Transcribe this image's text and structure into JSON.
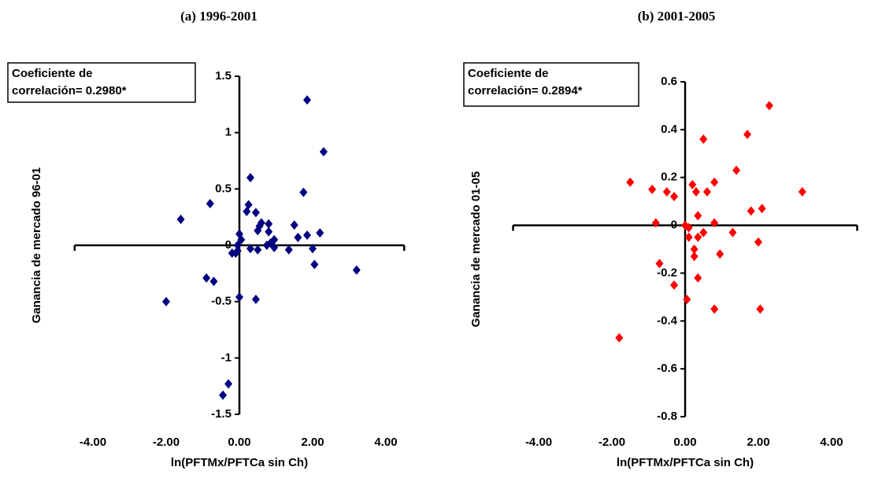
{
  "chart_data": [
    {
      "type": "scatter",
      "title": "(a) 1996-2001",
      "x_label": "ln(PFTMx/PFTCa sin Ch)",
      "y_label": "Ganancia de mercado 96-01",
      "annotation": [
        "Coeficiente de",
        "correlación= 0.2980*"
      ],
      "xlim": [
        -4.5,
        4.5
      ],
      "ylim": [
        -1.5,
        1.5
      ],
      "xticks": [
        {
          "value": -4,
          "label": "-4.00"
        },
        {
          "value": -2,
          "label": "-2.00"
        },
        {
          "value": 0,
          "label": "0.00"
        },
        {
          "value": 2,
          "label": "2.00"
        },
        {
          "value": 4,
          "label": "4.00"
        }
      ],
      "yticks": [
        -1.5,
        -1,
        -0.5,
        0,
        0.5,
        1,
        1.5
      ],
      "series": [
        {
          "color": "#000080",
          "x": [
            1.85,
            2.3,
            0.3,
            1.75,
            -0.8,
            -1.6,
            0.25,
            0.2,
            0.45,
            0.6,
            0.55,
            0.5,
            0.0,
            0.05,
            -0.05,
            0.8,
            0.8,
            0.95,
            0.85,
            0.75,
            0.95,
            1.5,
            1.6,
            1.35,
            1.85,
            2.2,
            2.0,
            2.05,
            0.3,
            0.5,
            -0.1,
            -0.2,
            -0.05,
            3.2,
            -0.9,
            -0.7,
            -2.0,
            0.0,
            0.45,
            -0.3,
            -0.45
          ],
          "y": [
            1.29,
            0.83,
            0.6,
            0.47,
            0.37,
            0.23,
            0.36,
            0.3,
            0.29,
            0.2,
            0.17,
            0.13,
            0.1,
            0.05,
            0.0,
            0.19,
            0.12,
            0.05,
            0.02,
            0.0,
            -0.02,
            0.18,
            0.07,
            -0.04,
            0.09,
            0.11,
            -0.03,
            -0.17,
            -0.03,
            -0.04,
            -0.07,
            -0.07,
            -0.05,
            -0.22,
            -0.29,
            -0.32,
            -0.5,
            -0.46,
            -0.48,
            -1.23,
            -1.33
          ]
        }
      ]
    },
    {
      "type": "scatter",
      "title": "(b) 2001-2005",
      "x_label": "ln(PFTMx/PFTCa sin Ch)",
      "y_label": "Ganancia de mercado  01-05",
      "annotation": [
        "Coeficiente de",
        "correlación= 0.2894*"
      ],
      "xlim": [
        -4.7,
        4.7
      ],
      "ylim": [
        -0.8,
        0.6
      ],
      "xticks": [
        {
          "value": -4,
          "label": "-4.00"
        },
        {
          "value": -2,
          "label": "-2.00"
        },
        {
          "value": 0,
          "label": "0.00"
        },
        {
          "value": 2,
          "label": "2.00"
        },
        {
          "value": 4,
          "label": "4.00"
        }
      ],
      "yticks": [
        -0.8,
        -0.6,
        -0.4,
        -0.2,
        0,
        0.2,
        0.4,
        0.6
      ],
      "series": [
        {
          "color": "#ff0000",
          "x": [
            2.3,
            3.2,
            1.7,
            0.5,
            1.4,
            0.8,
            2.1,
            1.8,
            1.3,
            2.0,
            2.05,
            0.8,
            0.95,
            0.8,
            -1.5,
            -0.9,
            -0.5,
            -0.3,
            0.2,
            0.3,
            0.6,
            -0.8,
            0.0,
            0.1,
            0.1,
            0.35,
            0.5,
            0.35,
            0.25,
            0.25,
            0.35,
            -0.7,
            -0.3,
            0.05,
            -1.8
          ],
          "y": [
            0.5,
            0.14,
            0.38,
            0.36,
            0.23,
            0.18,
            0.07,
            0.06,
            -0.03,
            -0.07,
            -0.35,
            -0.35,
            -0.12,
            0.01,
            0.18,
            0.15,
            0.14,
            0.12,
            0.17,
            0.14,
            0.14,
            0.01,
            0.0,
            -0.01,
            -0.05,
            0.04,
            -0.03,
            -0.05,
            -0.1,
            -0.13,
            -0.22,
            -0.16,
            -0.25,
            -0.31,
            -0.47
          ]
        }
      ]
    }
  ]
}
